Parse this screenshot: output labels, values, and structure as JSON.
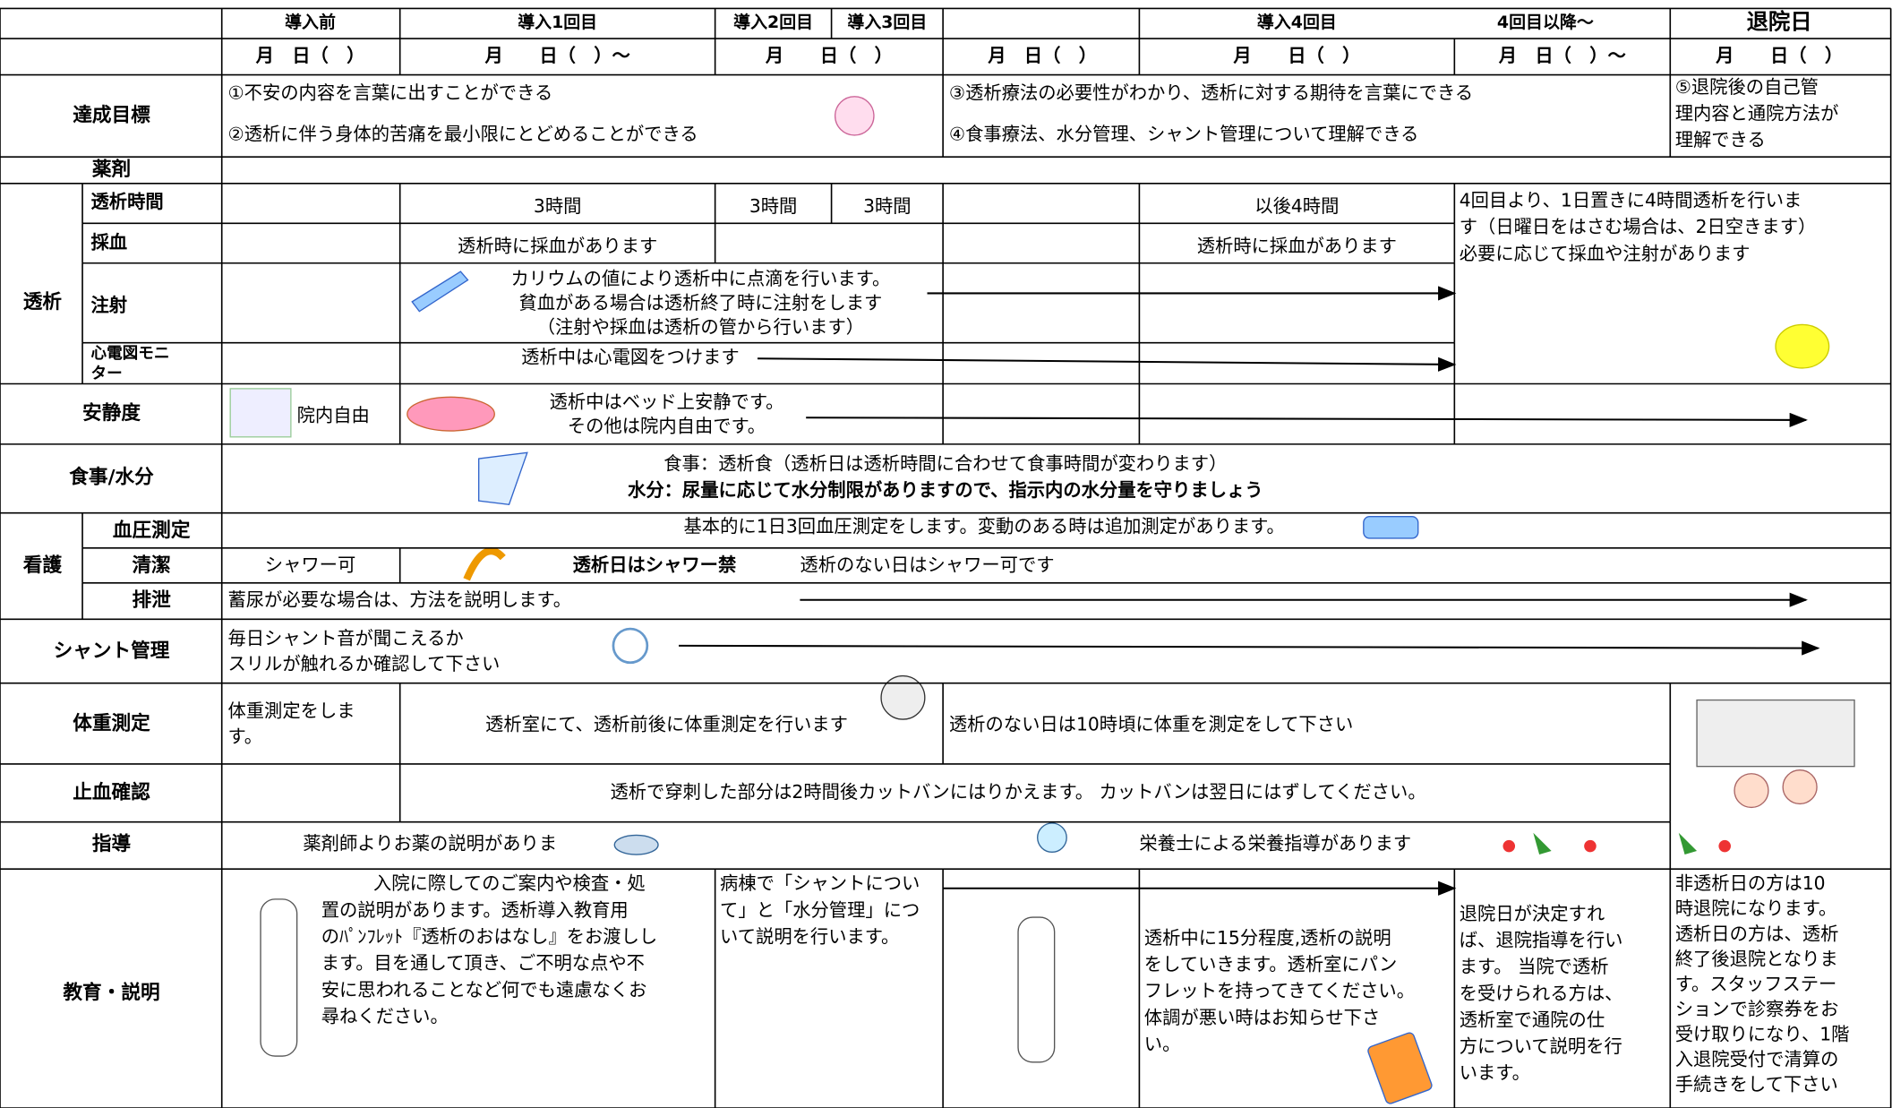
{
  "header": {
    "phases": [
      "導入前",
      "導入1回目",
      "導入2回目",
      "導入3回目",
      "導入4回目",
      "4回目以降～",
      "退院日"
    ],
    "dates": [
      "月　日（　）",
      "月　　日（　）～",
      "月　　日（　）",
      "月　日（　）",
      "月　　日（　）",
      "月　日（　）～",
      "月　　日（　）"
    ]
  },
  "goals": {
    "label": "達成目標",
    "items": [
      "①不安の内容を言葉に出すことができる",
      "②透析に伴う身体的苦痛を最小限にとどめることができる",
      "③透析療法の必要性がわかり、透析に対する期待を言葉にできる",
      "④食事療法、水分管理、シャント管理について理解できる"
    ],
    "final_goal": [
      "⑤退院後の自己管",
      "理内容と通院方法が",
      "理解できる"
    ]
  },
  "medication": {
    "label": "薬剤"
  },
  "dialysis": {
    "label": "透析",
    "time": {
      "label": "透析時間",
      "cells": [
        "3時間",
        "3時間",
        "3時間",
        "以後4時間"
      ]
    },
    "blood": {
      "label": "採血",
      "cells": [
        "透析時に採血があります",
        "透析時に採血があります"
      ]
    },
    "injection": {
      "label": "注射",
      "lines": [
        "カリウムの値により透析中に点滴を行います。",
        "貧血がある場合は透析終了時に注射をします",
        "（注射や採血は透析の管から行います）"
      ]
    },
    "ecg": {
      "label": [
        "心電図モニ",
        "ター"
      ],
      "text": "透析中は心電図をつけます"
    },
    "note": [
      "4回目より、1日置きに4時間透析を行いま",
      "す（日曜日をはさむ場合は、2日空きます）",
      "必要に応じて採血や注射があります"
    ]
  },
  "rest": {
    "label": "安静度",
    "before": "院内自由",
    "lines": [
      "透析中はベッド上安静です。",
      "その他は院内自由です。"
    ]
  },
  "meals": {
    "label": "食事/水分",
    "lines": [
      "食事：透析食（透析日は透析時間に合わせて食事時間が変わります）",
      "水分：尿量に応じて水分制限がありますので、指示内の水分量を守りましょう"
    ]
  },
  "nursing": {
    "label": "看護",
    "blood_pressure": {
      "label": "血圧測定",
      "text": "基本的に1日3回血圧測定をします。変動のある時は追加測定があります。"
    },
    "hygiene": {
      "label": "清潔",
      "before": "シャワー可",
      "bold": "透析日はシャワー禁",
      "text": "透析のない日はシャワー可です"
    },
    "excretion": {
      "label": "排泄",
      "text": "蓄尿が必要な場合は、方法を説明します。"
    }
  },
  "shunt": {
    "label": "シャント管理",
    "lines": [
      "毎日シャント音が聞こえるか",
      "スリルが触れるか確認して下さい"
    ]
  },
  "weight": {
    "label": "体重測定",
    "before": [
      "体重測定をしま",
      "す。"
    ],
    "dialysis": "透析室にて、透析前後に体重測定を行います",
    "other": "透析のない日は10時頃に体重を測定をして下さい"
  },
  "hemostasis": {
    "label": "止血確認",
    "text": "透析で穿刺した部分は2時間後カットバンにはりかえます。 カットバンは翌日にはずしてください。"
  },
  "guidance": {
    "label": "指導",
    "pharmacist": "薬剤師よりお薬の説明がありま",
    "nutrition": "栄養士による栄養指導があります"
  },
  "education": {
    "label": "教育・説明",
    "admission": [
      "入院に際してのご案内や検査・処",
      "置の説明があります。透析導入教育用",
      "のﾊﾟﾝﾌﾚｯﾄ『透析のおはなし』をお渡しし",
      "ます。目を通して頂き、ご不明な点や不",
      "安に思われることなど何でも遠慮なくお",
      "尋ねください。"
    ],
    "ward": [
      "病棟で「シャントについ",
      "て」と「水分管理」につ",
      "いて説明を行います。"
    ],
    "dialysis": [
      "透析中に15分程度,透析の説明",
      "をしていきます。透析室にパン",
      "フレットを持ってきてください。",
      "体調が悪い時はお知らせ下さ",
      "い。"
    ],
    "discharge": [
      "退院日が決定すれ",
      "ば、退院指導を行い",
      "ます。 当院で透析",
      "を受けられる方は、",
      "透析室で通院の仕",
      "方について説明を行",
      "います。"
    ],
    "discharge_day": [
      "非透析日の方は10",
      "時退院になります。",
      "透析日の方は、透析",
      "終了後退院となりま",
      "す。スタッフステー",
      "ションで診察券をお",
      "受け取りになり、1階",
      "入退院受付で清算の",
      "手続きをして下さい"
    ]
  }
}
